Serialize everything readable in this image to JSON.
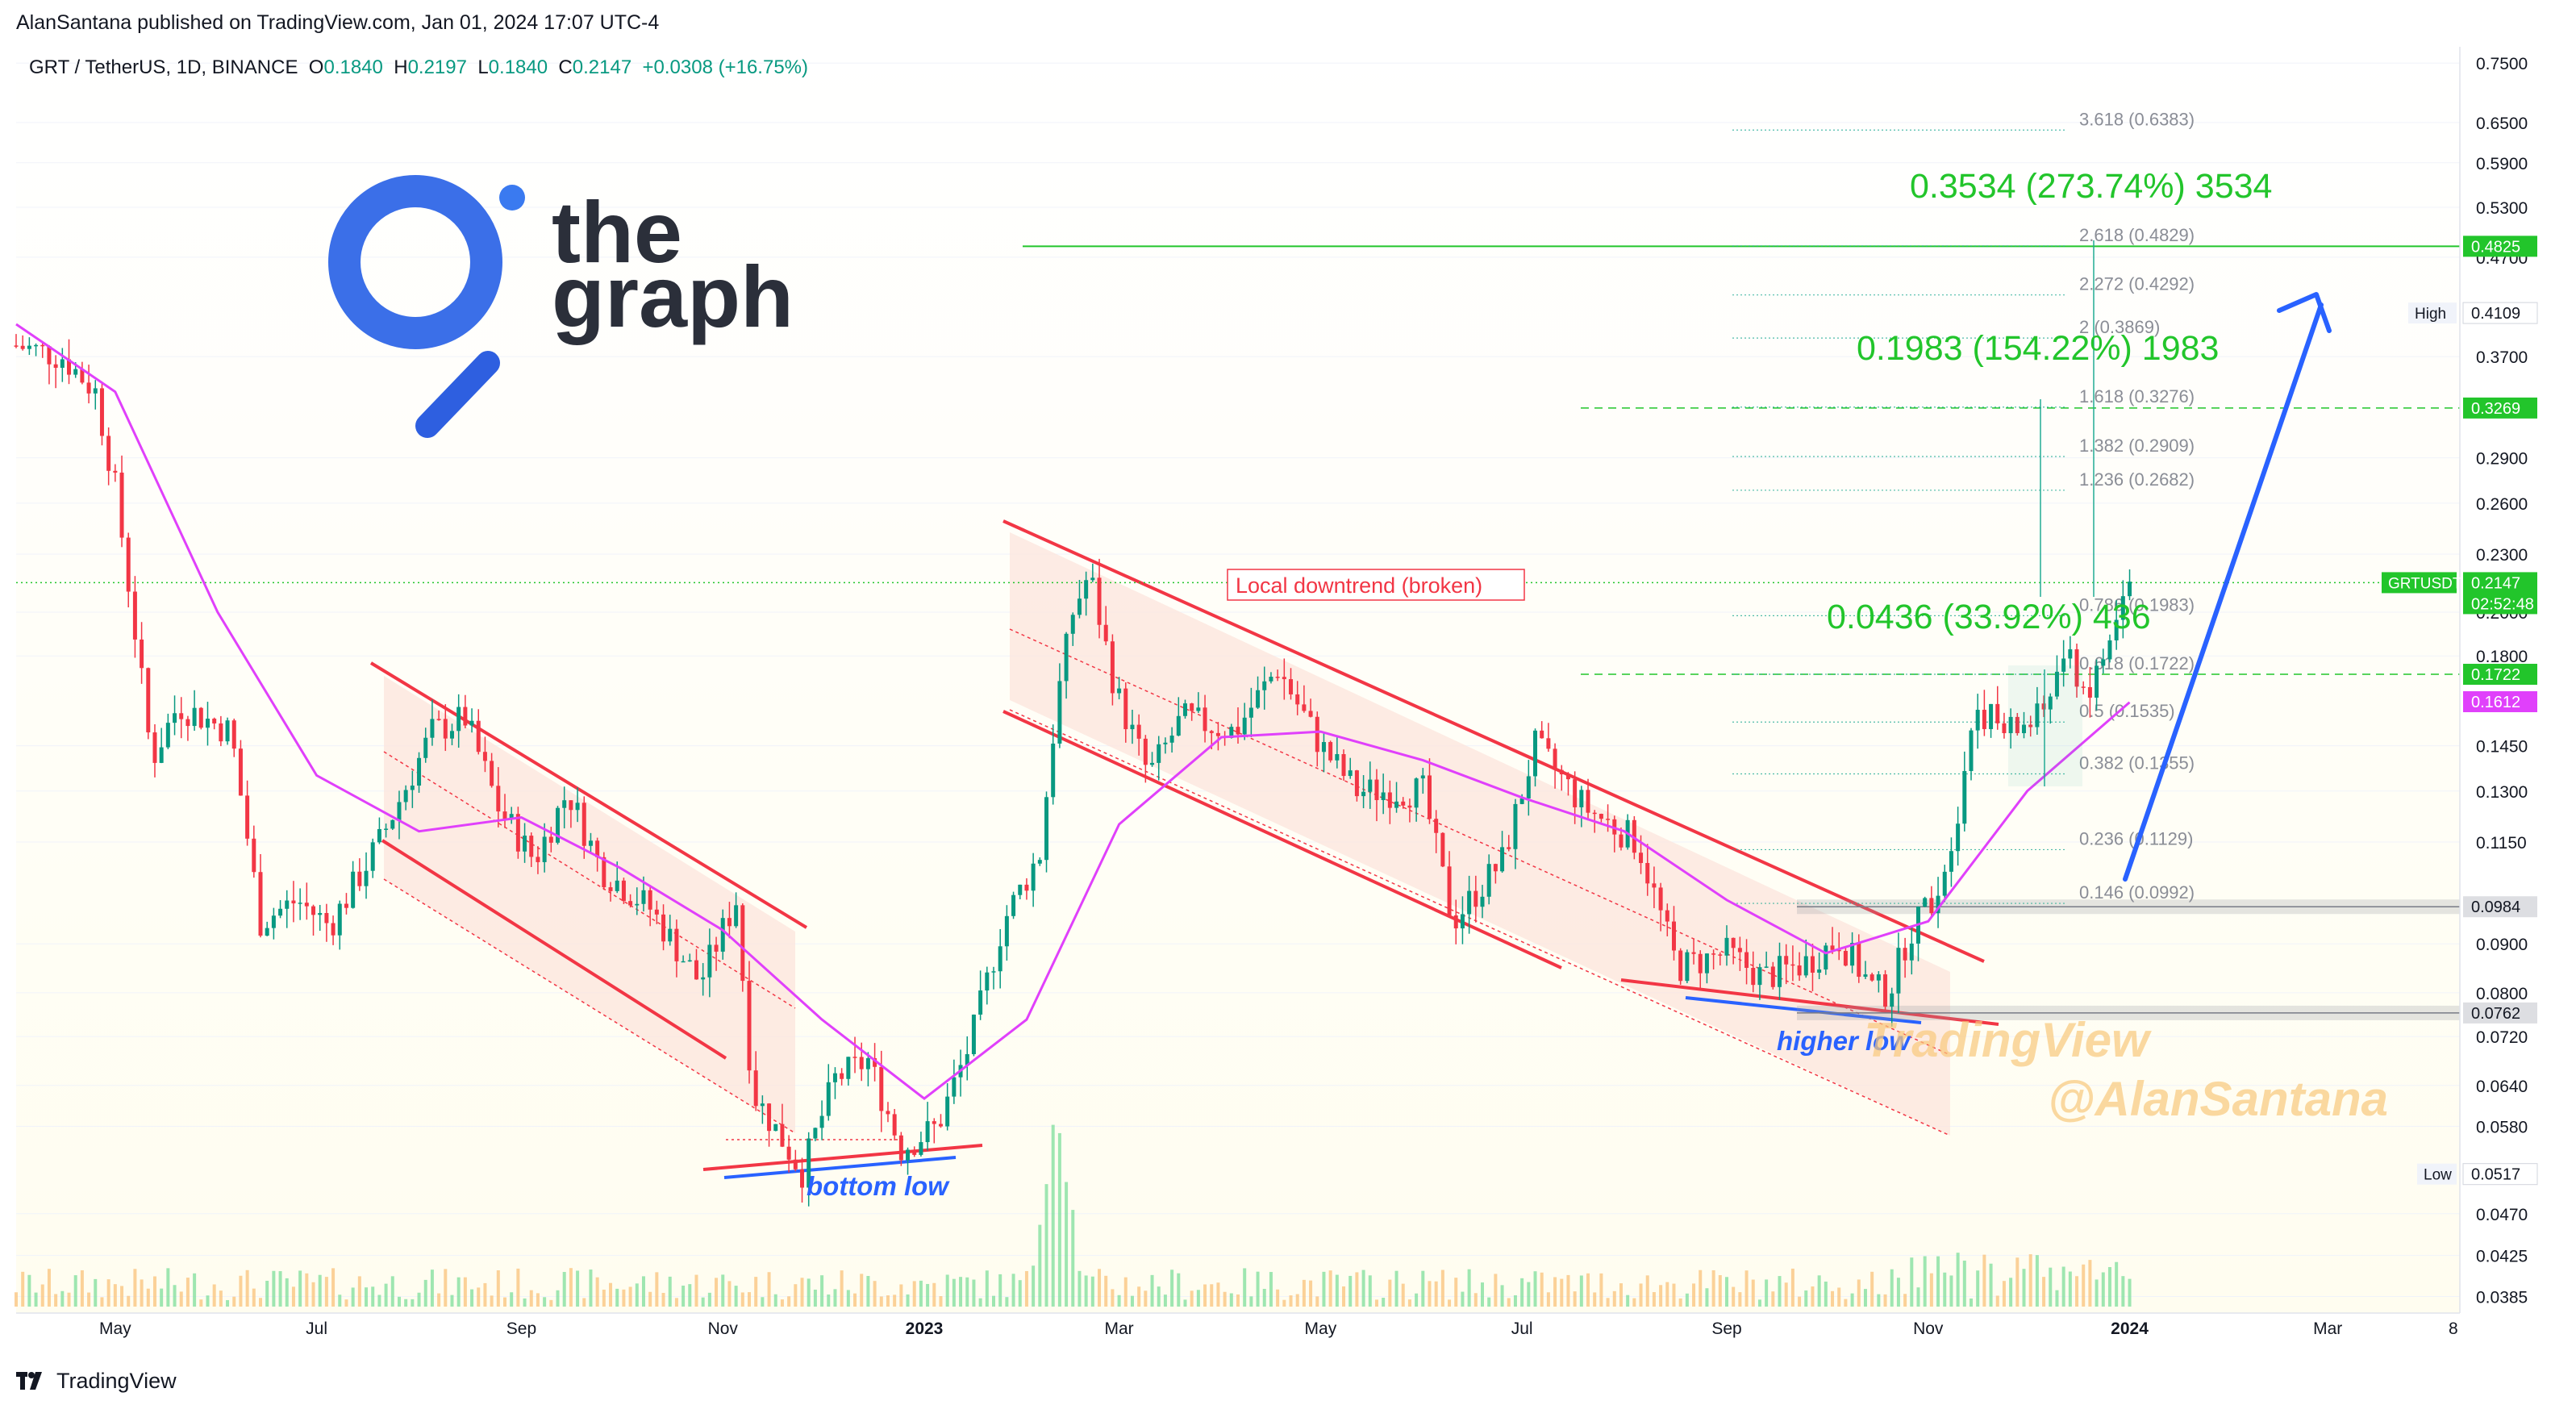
{
  "header": {
    "published": "AlanSantana published on TradingView.com, Jan 01, 2024 17:07 UTC-4"
  },
  "symbol": {
    "title": "GRT / TetherUS, 1D, BINANCE",
    "o_label": "O",
    "o": "0.1840",
    "h_label": "H",
    "h": "0.2197",
    "l_label": "L",
    "l": "0.1840",
    "c_label": "C",
    "c": "0.2147",
    "change": "+0.0308 (+16.75%)"
  },
  "logo": {
    "text1": "the",
    "text2": "graph"
  },
  "footer": {
    "brand": "TradingView"
  },
  "colors": {
    "up": "#089981",
    "down": "#F23645",
    "ma": "#E040FB",
    "fib": "#22AB94",
    "arrow": "#2962FF",
    "trend": "#F23645",
    "channel_fill": "#FCE4DC",
    "green_badge": "#22C52B"
  },
  "annotations": {
    "downtrend": "Local downtrend (broken)",
    "bottom_low": "bottom low",
    "higher_low": "higher low",
    "watermark1": "TradingView",
    "watermark2": "@AlanSantana",
    "measure1": "0.0436 (33.92%) 436",
    "measure2": "0.1983 (154.22%) 1983",
    "measure3": "0.3534 (273.74%) 3534"
  },
  "chart_data": {
    "type": "candlestick",
    "symbol": "GRTUSDT",
    "scale": "log",
    "ylim": [
      0.037,
      0.78
    ],
    "x_range": [
      "2022-04-01",
      "2024-04-10"
    ],
    "x_ticks": [
      "May",
      "Jul",
      "Sep",
      "Nov",
      "2023",
      "Mar",
      "May",
      "Jul",
      "Sep",
      "Nov",
      "2024",
      "Mar",
      "8"
    ],
    "y_ticks": [
      "0.7500",
      "0.6500",
      "0.5900",
      "0.5300",
      "0.4700",
      "0.3700",
      "0.2900",
      "0.2600",
      "0.2300",
      "0.2000",
      "0.1800",
      "0.1450",
      "0.1300",
      "0.1150",
      "0.0900",
      "0.0800",
      "0.0720",
      "0.0640",
      "0.0580",
      "0.0470",
      "0.0425",
      "0.0385"
    ],
    "price_path": [
      [
        "2022-04-01",
        0.38
      ],
      [
        "2022-04-15",
        0.37
      ],
      [
        "2022-04-25",
        0.34
      ],
      [
        "2022-05-01",
        0.27
      ],
      [
        "2022-05-08",
        0.18
      ],
      [
        "2022-05-12",
        0.14
      ],
      [
        "2022-05-20",
        0.16
      ],
      [
        "2022-06-05",
        0.15
      ],
      [
        "2022-06-14",
        0.095
      ],
      [
        "2022-06-25",
        0.1
      ],
      [
        "2022-07-05",
        0.094
      ],
      [
        "2022-07-20",
        0.115
      ],
      [
        "2022-08-05",
        0.15
      ],
      [
        "2022-08-15",
        0.155
      ],
      [
        "2022-08-25",
        0.125
      ],
      [
        "2022-09-05",
        0.11
      ],
      [
        "2022-09-15",
        0.13
      ],
      [
        "2022-09-25",
        0.108
      ],
      [
        "2022-10-10",
        0.098
      ],
      [
        "2022-10-25",
        0.082
      ],
      [
        "2022-11-05",
        0.1
      ],
      [
        "2022-11-10",
        0.063
      ],
      [
        "2022-11-25",
        0.052
      ],
      [
        "2022-12-05",
        0.065
      ],
      [
        "2022-12-15",
        0.068
      ],
      [
        "2022-12-25",
        0.055
      ],
      [
        "2023-01-05",
        0.058
      ],
      [
        "2023-01-15",
        0.071
      ],
      [
        "2023-01-25",
        0.095
      ],
      [
        "2023-02-05",
        0.112
      ],
      [
        "2023-02-10",
        0.16
      ],
      [
        "2023-02-15",
        0.2
      ],
      [
        "2023-02-20",
        0.22
      ],
      [
        "2023-02-28",
        0.165
      ],
      [
        "2023-03-10",
        0.135
      ],
      [
        "2023-03-20",
        0.155
      ],
      [
        "2023-04-05",
        0.15
      ],
      [
        "2023-04-18",
        0.175
      ],
      [
        "2023-05-01",
        0.145
      ],
      [
        "2023-05-12",
        0.13
      ],
      [
        "2023-06-01",
        0.13
      ],
      [
        "2023-06-10",
        0.095
      ],
      [
        "2023-06-25",
        0.11
      ],
      [
        "2023-07-05",
        0.145
      ],
      [
        "2023-07-20",
        0.125
      ],
      [
        "2023-08-05",
        0.115
      ],
      [
        "2023-08-17",
        0.085
      ],
      [
        "2023-09-01",
        0.088
      ],
      [
        "2023-09-12",
        0.083
      ],
      [
        "2023-09-25",
        0.086
      ],
      [
        "2023-10-05",
        0.091
      ],
      [
        "2023-10-15",
        0.081
      ],
      [
        "2023-10-20",
        0.08
      ],
      [
        "2023-10-26",
        0.092
      ],
      [
        "2023-11-05",
        0.105
      ],
      [
        "2023-11-10",
        0.125
      ],
      [
        "2023-11-15",
        0.16
      ],
      [
        "2023-11-25",
        0.15
      ],
      [
        "2023-12-05",
        0.155
      ],
      [
        "2023-12-12",
        0.18
      ],
      [
        "2023-12-20",
        0.165
      ],
      [
        "2023-12-28",
        0.195
      ],
      [
        "2024-01-01",
        0.2147
      ]
    ],
    "ma_path": [
      [
        "2022-04-01",
        0.4
      ],
      [
        "2022-05-01",
        0.34
      ],
      [
        "2022-06-01",
        0.2
      ],
      [
        "2022-07-01",
        0.135
      ],
      [
        "2022-08-01",
        0.118
      ],
      [
        "2022-09-01",
        0.122
      ],
      [
        "2022-10-01",
        0.108
      ],
      [
        "2022-11-01",
        0.093
      ],
      [
        "2022-12-01",
        0.075
      ],
      [
        "2023-01-01",
        0.062
      ],
      [
        "2023-02-01",
        0.075
      ],
      [
        "2023-03-01",
        0.12
      ],
      [
        "2023-04-01",
        0.148
      ],
      [
        "2023-05-01",
        0.15
      ],
      [
        "2023-06-01",
        0.14
      ],
      [
        "2023-07-01",
        0.128
      ],
      [
        "2023-08-01",
        0.118
      ],
      [
        "2023-09-01",
        0.1
      ],
      [
        "2023-10-01",
        0.088
      ],
      [
        "2023-11-01",
        0.095
      ],
      [
        "2023-12-01",
        0.13
      ],
      [
        "2024-01-01",
        0.161
      ]
    ],
    "ma_last": 0.1612,
    "volume": {
      "spike_date": "2023-02-10",
      "baseline": "low"
    },
    "fibonacci": [
      {
        "ratio": "0.146",
        "label": "0.146 (0.0992)",
        "value": 0.0992
      },
      {
        "ratio": "0.236",
        "label": "0.236 (0.1129)",
        "value": 0.1129
      },
      {
        "ratio": "0.382",
        "label": "0.382 (0.1355)",
        "value": 0.1355
      },
      {
        "ratio": "0.5",
        "label": "0.5 (0.1535)",
        "value": 0.1535
      },
      {
        "ratio": "0.618",
        "label": "0.618 (0.1722)",
        "value": 0.1722
      },
      {
        "ratio": "0.786",
        "label": "0.786 (0.1983)",
        "value": 0.1983
      },
      {
        "ratio": "1.236",
        "label": "1.236 (0.2682)",
        "value": 0.2682
      },
      {
        "ratio": "1.382",
        "label": "1.382 (0.2909)",
        "value": 0.2909
      },
      {
        "ratio": "1.618",
        "label": "1.618 (0.3276)",
        "value": 0.3276
      },
      {
        "ratio": "2",
        "label": "2 (0.3869)",
        "value": 0.3869
      },
      {
        "ratio": "2.272",
        "label": "2.272 (0.4292)",
        "value": 0.4292
      },
      {
        "ratio": "2.618",
        "label": "2.618 (0.4829)",
        "value": 0.4829
      },
      {
        "ratio": "3.618",
        "label": "3.618 (0.6383)",
        "value": 0.6383
      }
    ],
    "horizontal_levels": [
      {
        "value": 0.4825,
        "style": "solid",
        "color": "#22C52B"
      },
      {
        "value": 0.3269,
        "style": "dashed",
        "color": "#22C52B"
      },
      {
        "value": 0.1722,
        "style": "dashed",
        "color": "#22C52B"
      },
      {
        "value": 0.2147,
        "style": "dotted",
        "color": "#22C52B"
      }
    ],
    "price_badges": [
      {
        "value": 0.4825,
        "text": "0.4825",
        "kind": "green"
      },
      {
        "value": 0.4109,
        "text": "0.4109",
        "kind": "plain",
        "tag": "High"
      },
      {
        "value": 0.3269,
        "text": "0.3269",
        "kind": "green"
      },
      {
        "value": 0.2147,
        "text": "0.2147",
        "kind": "green",
        "tag": "GRTUSDT",
        "sub": "02:52:48"
      },
      {
        "value": 0.1722,
        "text": "0.1722",
        "kind": "green"
      },
      {
        "value": 0.1612,
        "text": "0.1612",
        "kind": "magenta"
      },
      {
        "value": 0.0984,
        "text": "0.0984",
        "kind": "dark"
      },
      {
        "value": 0.0762,
        "text": "0.0762",
        "kind": "dark"
      },
      {
        "value": 0.0517,
        "text": "0.0517",
        "kind": "plain",
        "tag": "Low"
      }
    ]
  }
}
